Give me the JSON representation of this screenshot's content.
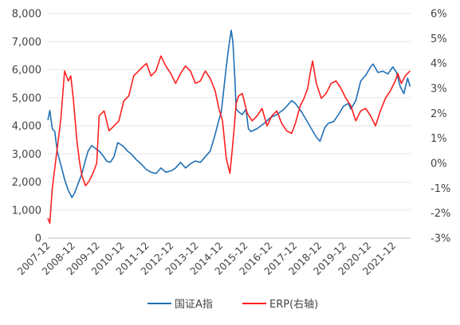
{
  "chart_data": {
    "type": "line",
    "title": "",
    "xlabel": "",
    "ylabel": "",
    "x_tick_labels": [
      "2007-12",
      "2008-12",
      "2009-12",
      "2010-12",
      "2011-12",
      "2012-12",
      "2013-12",
      "2014-12",
      "2015-12",
      "2016-12",
      "2017-12",
      "2018-12",
      "2019-12",
      "2020-12",
      "2021-12"
    ],
    "y_left_ticks": [
      "0",
      "1,000",
      "2,000",
      "3,000",
      "4,000",
      "5,000",
      "6,000",
      "7,000",
      "8,000"
    ],
    "y_right_ticks": [
      "-3%",
      "-2%",
      "-1%",
      "0%",
      "1%",
      "2%",
      "3%",
      "4%",
      "5%",
      "6%"
    ],
    "ylim_left": [
      0,
      8000
    ],
    "ylim_right": [
      -3,
      6
    ],
    "grid": "horizontal",
    "legend_position": "bottom",
    "series": [
      {
        "name": "国证A指",
        "axis": "left",
        "color": "#1f6fb5",
        "x": [
          2007.92,
          2008.0,
          2008.1,
          2008.2,
          2008.3,
          2008.45,
          2008.6,
          2008.75,
          2008.9,
          2009.0,
          2009.15,
          2009.3,
          2009.45,
          2009.55,
          2009.7,
          2009.85,
          2010.0,
          2010.15,
          2010.3,
          2010.45,
          2010.6,
          2010.75,
          2010.85,
          2011.0,
          2011.15,
          2011.3,
          2011.5,
          2011.7,
          2011.9,
          2012.1,
          2012.3,
          2012.5,
          2012.7,
          2012.92,
          2013.1,
          2013.3,
          2013.5,
          2013.7,
          2013.9,
          2014.1,
          2014.3,
          2014.5,
          2014.7,
          2014.85,
          2014.95,
          2015.05,
          2015.15,
          2015.25,
          2015.35,
          2015.42,
          2015.5,
          2015.55,
          2015.65,
          2015.8,
          2015.95,
          2016.05,
          2016.15,
          2016.4,
          2016.7,
          2016.95,
          2017.2,
          2017.5,
          2017.8,
          2017.95,
          2018.2,
          2018.4,
          2018.6,
          2018.8,
          2018.95,
          2019.15,
          2019.3,
          2019.5,
          2019.7,
          2019.9,
          2020.1,
          2020.2,
          2020.4,
          2020.6,
          2020.8,
          2021.0,
          2021.1,
          2021.3,
          2021.5,
          2021.7,
          2021.9,
          2022.05,
          2022.2,
          2022.35,
          2022.5,
          2022.6
        ],
        "values": [
          4200,
          4550,
          3900,
          3800,
          3100,
          2600,
          2100,
          1700,
          1450,
          1600,
          1950,
          2300,
          2800,
          3100,
          3300,
          3200,
          3100,
          2950,
          2750,
          2700,
          2900,
          3400,
          3350,
          3250,
          3100,
          3000,
          2800,
          2650,
          2450,
          2350,
          2300,
          2500,
          2350,
          2400,
          2500,
          2700,
          2500,
          2650,
          2750,
          2700,
          2900,
          3100,
          3700,
          4200,
          4500,
          5300,
          6100,
          6800,
          7400,
          7000,
          5700,
          4600,
          4500,
          4400,
          4600,
          3900,
          3800,
          3900,
          4100,
          4300,
          4400,
          4600,
          4900,
          4800,
          4500,
          4200,
          3900,
          3600,
          3450,
          3950,
          4100,
          4150,
          4400,
          4700,
          4800,
          4600,
          4900,
          5600,
          5800,
          6100,
          6200,
          5900,
          5950,
          5850,
          6100,
          5900,
          5400,
          5150,
          5700,
          5400
        ]
      },
      {
        "name": "ERP(右轴)",
        "axis": "right",
        "color": "#ff1f1f",
        "x": [
          2007.92,
          2008.0,
          2008.1,
          2008.2,
          2008.3,
          2008.45,
          2008.6,
          2008.75,
          2008.85,
          2008.95,
          2009.1,
          2009.2,
          2009.3,
          2009.45,
          2009.6,
          2009.75,
          2009.9,
          2010.0,
          2010.2,
          2010.4,
          2010.6,
          2010.8,
          2011.0,
          2011.2,
          2011.4,
          2011.6,
          2011.8,
          2011.92,
          2012.1,
          2012.3,
          2012.5,
          2012.7,
          2012.9,
          2013.1,
          2013.3,
          2013.5,
          2013.7,
          2013.9,
          2014.1,
          2014.3,
          2014.5,
          2014.7,
          2014.85,
          2015.0,
          2015.15,
          2015.3,
          2015.4,
          2015.47,
          2015.55,
          2015.65,
          2015.8,
          2016.0,
          2016.2,
          2016.4,
          2016.6,
          2016.8,
          2017.0,
          2017.2,
          2017.4,
          2017.6,
          2017.8,
          2017.95,
          2018.15,
          2018.3,
          2018.45,
          2018.55,
          2018.65,
          2018.8,
          2019.0,
          2019.2,
          2019.4,
          2019.6,
          2019.8,
          2020.0,
          2020.2,
          2020.4,
          2020.6,
          2020.8,
          2021.0,
          2021.2,
          2021.4,
          2021.6,
          2021.8,
          2022.0,
          2022.1,
          2022.25,
          2022.4,
          2022.6
        ],
        "values": [
          -2.2,
          -2.4,
          -1.0,
          -0.2,
          0.6,
          1.8,
          3.7,
          3.3,
          3.5,
          2.6,
          0.9,
          0.1,
          -0.5,
          -0.9,
          -0.7,
          -0.4,
          0.0,
          1.9,
          2.1,
          1.3,
          1.5,
          1.7,
          2.5,
          2.7,
          3.5,
          3.7,
          3.9,
          4.0,
          3.5,
          3.7,
          4.3,
          3.9,
          3.6,
          3.2,
          3.6,
          3.9,
          3.7,
          3.2,
          3.3,
          3.7,
          3.4,
          2.9,
          2.2,
          1.7,
          0.2,
          -0.4,
          0.6,
          1.4,
          2.4,
          2.7,
          2.8,
          2.0,
          1.7,
          1.9,
          2.2,
          1.5,
          1.9,
          2.1,
          1.6,
          1.3,
          1.2,
          1.6,
          2.3,
          2.6,
          3.0,
          3.6,
          4.1,
          3.2,
          2.6,
          2.8,
          3.2,
          3.3,
          3.0,
          2.6,
          2.3,
          1.7,
          2.1,
          2.2,
          1.9,
          1.5,
          2.1,
          2.6,
          2.9,
          3.3,
          3.6,
          3.2,
          3.5,
          3.7
        ]
      }
    ]
  }
}
